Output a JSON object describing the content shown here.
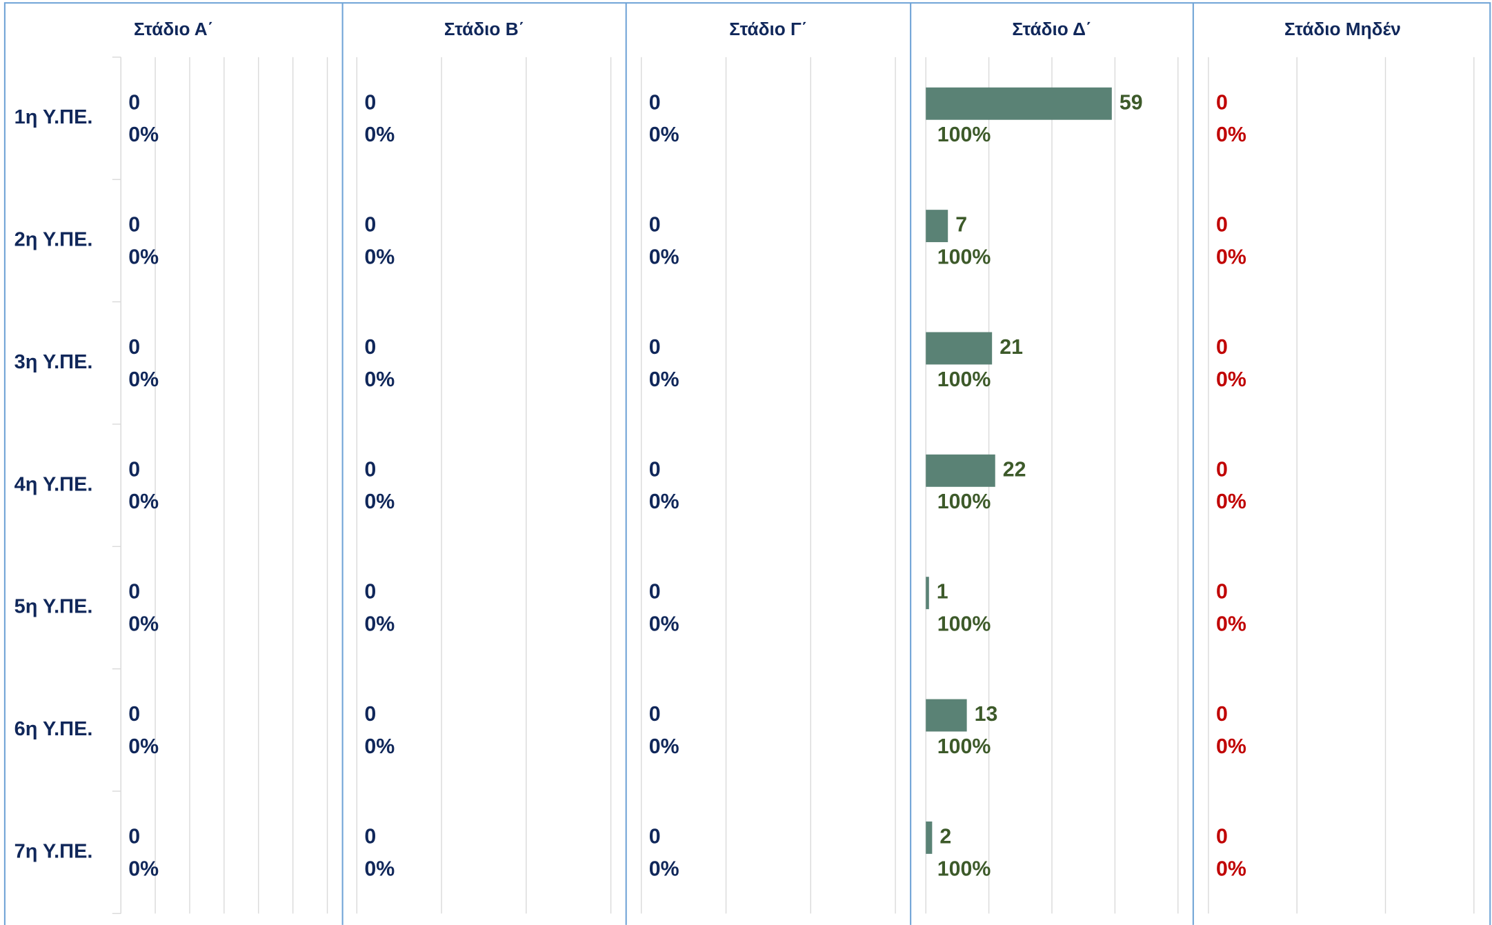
{
  "chart_data": {
    "type": "bar",
    "orientation": "horizontal",
    "categories": [
      "1η Υ.ΠΕ.",
      "2η Υ.ΠΕ.",
      "3η Υ.ΠΕ.",
      "4η Υ.ΠΕ.",
      "5η Υ.ΠΕ.",
      "6η Υ.ΠΕ.",
      "7η Υ.ΠΕ."
    ],
    "series": [
      {
        "name": "Στάδιο Α΄",
        "color": "#5a8275",
        "label_color": "#10275a",
        "values": [
          0,
          0,
          0,
          0,
          0,
          0,
          0
        ],
        "percents": [
          0,
          0,
          0,
          0,
          0,
          0,
          0
        ],
        "percent_labels": [
          "0%",
          "0%",
          "0%",
          "0%",
          "0%",
          "0%",
          "0%"
        ],
        "xlim": [
          0,
          6
        ],
        "xticks": [
          0,
          1,
          2,
          3,
          4,
          5,
          6
        ]
      },
      {
        "name": "Στάδιο Β΄",
        "color": "#5a8275",
        "label_color": "#10275a",
        "values": [
          0,
          0,
          0,
          0,
          0,
          0,
          0
        ],
        "percents": [
          0,
          0,
          0,
          0,
          0,
          0,
          0
        ],
        "percent_labels": [
          "0%",
          "0%",
          "0%",
          "0%",
          "0%",
          "0%",
          "0%"
        ],
        "xlim": [
          0,
          3
        ],
        "xticks": [
          0,
          1,
          2,
          3
        ]
      },
      {
        "name": "Στάδιο Γ΄",
        "color": "#5a8275",
        "label_color": "#10275a",
        "values": [
          0,
          0,
          0,
          0,
          0,
          0,
          0
        ],
        "percents": [
          0,
          0,
          0,
          0,
          0,
          0,
          0
        ],
        "percent_labels": [
          "0%",
          "0%",
          "0%",
          "0%",
          "0%",
          "0%",
          "0%"
        ],
        "xlim": [
          0,
          3
        ],
        "xticks": [
          0,
          1,
          2,
          3
        ]
      },
      {
        "name": "Στάδιο Δ΄",
        "color": "#5a8275",
        "label_color": "#3d5a2a",
        "values": [
          59,
          7,
          21,
          22,
          1,
          13,
          2
        ],
        "percents": [
          100,
          100,
          100,
          100,
          100,
          100,
          100
        ],
        "percent_labels": [
          "100%",
          "100%",
          "100%",
          "100%",
          "100%",
          "100%",
          "100%"
        ],
        "xlim": [
          0,
          80
        ],
        "xticks": [
          0,
          20,
          40,
          60,
          80
        ]
      },
      {
        "name": "Στάδιο Μηδέν",
        "color": "#5a8275",
        "label_color": "#c00000",
        "values": [
          0,
          0,
          0,
          0,
          0,
          0,
          0
        ],
        "percents": [
          0,
          0,
          0,
          0,
          0,
          0,
          0
        ],
        "percent_labels": [
          "0%",
          "0%",
          "0%",
          "0%",
          "0%",
          "0%",
          "0%"
        ],
        "xlim": [
          0,
          3
        ],
        "xticks": [
          0,
          1,
          2,
          3
        ]
      }
    ],
    "grid": true
  }
}
